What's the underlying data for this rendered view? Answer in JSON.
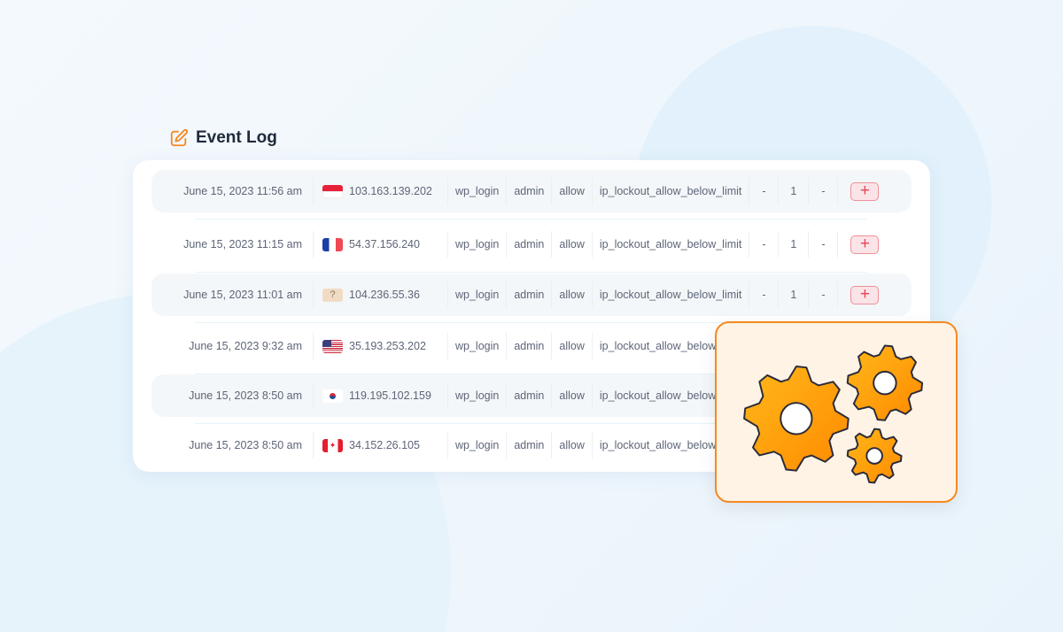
{
  "title": "Event Log",
  "icons": {
    "title": "edit-icon",
    "action": "plus-icon",
    "illustration": "gears-icon"
  },
  "colors": {
    "accent": "#f5891f",
    "action": "#e84456"
  },
  "rows": [
    {
      "date": "June 15, 2023 11:56 am",
      "flag": "indonesia",
      "ip": "103.163.139.202",
      "type": "wp_login",
      "user": "admin",
      "result": "allow",
      "reason": "ip_lockout_allow_below_limit",
      "a": "-",
      "count": "1",
      "b": "-"
    },
    {
      "date": "June 15, 2023 11:15 am",
      "flag": "france",
      "ip": "54.37.156.240",
      "type": "wp_login",
      "user": "admin",
      "result": "allow",
      "reason": "ip_lockout_allow_below_limit",
      "a": "-",
      "count": "1",
      "b": "-"
    },
    {
      "date": "June 15, 2023 11:01 am",
      "flag": "unknown",
      "flag_text": "?",
      "ip": "104.236.55.36",
      "type": "wp_login",
      "user": "admin",
      "result": "allow",
      "reason": "ip_lockout_allow_below_limit",
      "a": "-",
      "count": "1",
      "b": "-"
    },
    {
      "date": "June 15, 2023 9:32 am",
      "flag": "usa",
      "ip": "35.193.253.202",
      "type": "wp_login",
      "user": "admin",
      "result": "allow",
      "reason": "ip_lockout_allow_below_limit"
    },
    {
      "date": "June 15, 2023 8:50 am",
      "flag": "south-korea",
      "ip": "119.195.102.159",
      "type": "wp_login",
      "user": "admin",
      "result": "allow",
      "reason": "ip_lockout_allow_below_limit"
    },
    {
      "date": "June 15, 2023 8:50 am",
      "flag": "canada",
      "ip": "34.152.26.105",
      "type": "wp_login",
      "user": "admin",
      "result": "allow",
      "reason": "ip_lockout_allow_below_limit"
    }
  ]
}
